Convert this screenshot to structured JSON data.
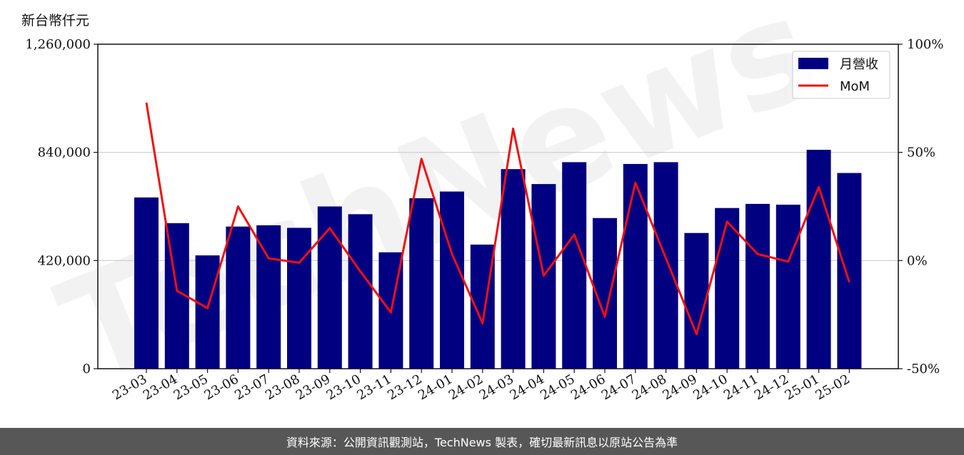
{
  "unit_label": "新台幣仟元",
  "footer": "資料來源：公開資訊觀測站，TechNews 製表，確切最新訊息以原站公告為準",
  "watermark": "TechNews",
  "colors": {
    "bar": "#000080",
    "line": "#ee1111",
    "grid": "#cccccc",
    "footer_bg": "#575757",
    "watermark": "#e8e8e8",
    "watermark_accent": "#f7dcdc"
  },
  "chart_data": {
    "type": "bar",
    "categories": [
      "23-03",
      "23-04",
      "23-05",
      "23-06",
      "23-07",
      "23-08",
      "23-09",
      "23-10",
      "23-11",
      "23-12",
      "24-01",
      "24-02",
      "24-03",
      "24-04",
      "24-05",
      "24-06",
      "24-07",
      "24-08",
      "24-09",
      "24-10",
      "24-11",
      "24-12",
      "25-01",
      "25-02"
    ],
    "series": [
      {
        "name": "月營收",
        "type": "bar",
        "axis": "left",
        "values": [
          665000,
          565000,
          440000,
          552000,
          557000,
          547000,
          630000,
          600000,
          452000,
          662000,
          688000,
          482000,
          775000,
          717000,
          802000,
          585000,
          795000,
          802000,
          527000,
          624000,
          640000,
          637000,
          850000,
          760000
        ]
      },
      {
        "name": "MoM",
        "type": "line",
        "axis": "right",
        "values": [
          73,
          -14,
          -22,
          25,
          1,
          -1,
          15,
          -5,
          -24,
          47,
          3,
          -29,
          61,
          -7,
          12,
          -26,
          36,
          1,
          -34,
          18,
          3,
          -0.5,
          34,
          -10
        ]
      }
    ],
    "y_left": {
      "ylim": [
        0,
        1260000
      ],
      "ticks": [
        0,
        420000,
        840000,
        1260000
      ],
      "tick_labels": [
        "0",
        "420,000",
        "840,000",
        "1,260,000"
      ]
    },
    "y_right": {
      "ylim": [
        -50,
        100
      ],
      "ticks": [
        -50,
        0,
        50,
        100
      ],
      "tick_labels": [
        "-50%",
        "0%",
        "50%",
        "100%"
      ]
    },
    "grid": "horizontal",
    "legend_position": "top-right"
  }
}
